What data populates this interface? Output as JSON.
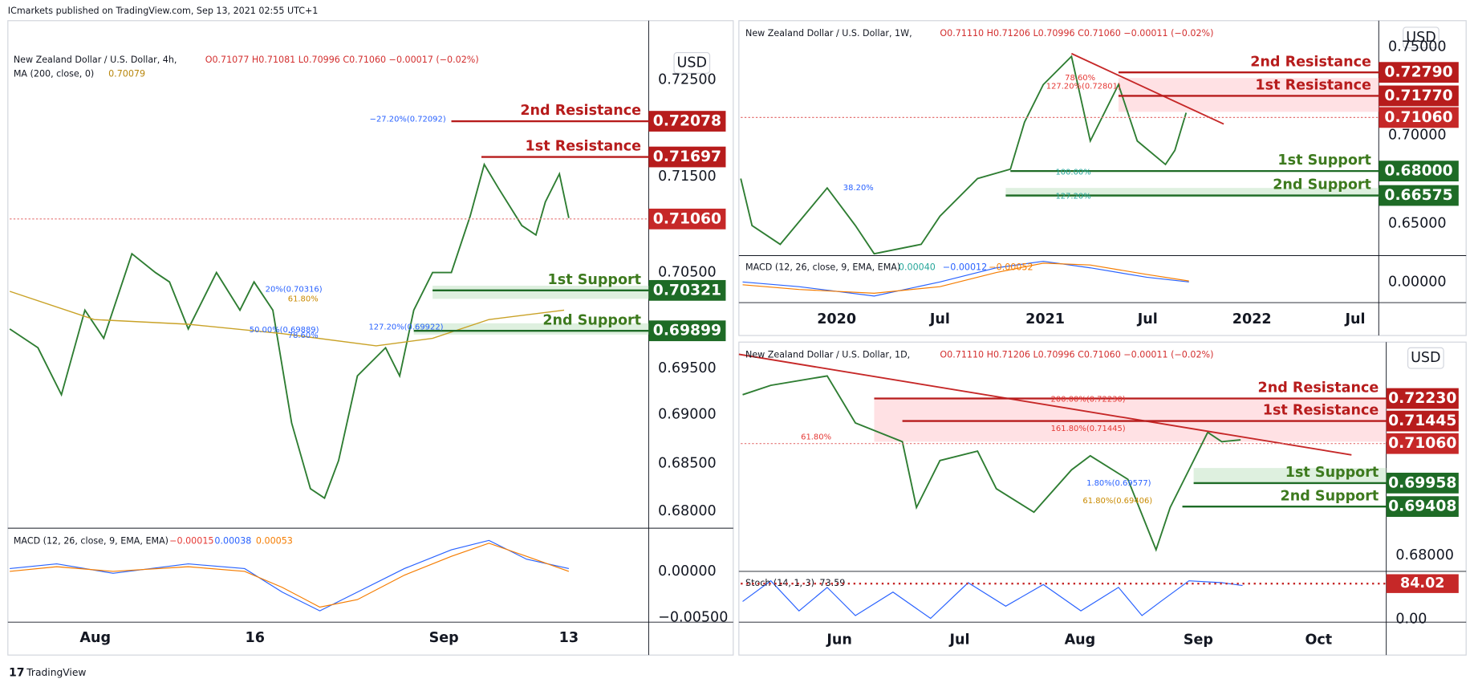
{
  "header": {
    "publisher": "ICmarkets published on TradingView.com, Sep 13, 2021 02:55 UTC+1"
  },
  "footer": {
    "brand": "TradingView"
  },
  "panels": [
    {
      "title": "New Zealand Dollar / U.S. Dollar, 4h,",
      "ohlc": "O0.71077 H0.71081 L0.70996 C0.71060 −0.00017 (−0.02%)",
      "overlay": {
        "title": "MA (200, close, 0)",
        "value": "0.70079"
      },
      "currency": "USD",
      "price_axis": [
        "0.72500",
        "0.71500",
        "0.70500",
        "0.69500",
        "0.69000",
        "0.68500",
        "0.68000"
      ],
      "levels": [
        {
          "name": "2nd Resistance",
          "price": "0.72078"
        },
        {
          "name": "1st Resistance",
          "price": "0.71697"
        },
        {
          "name": "1st Support",
          "price": "0.70321"
        },
        {
          "name": "2nd Support",
          "price": "0.69899"
        }
      ],
      "current_price": "0.71060",
      "fib_labels": [
        "−27.20%(0.72092)",
        "20%(0.70316)",
        "61.80%",
        "50.00%(0.69889)",
        "127.20%(0.69922)",
        "78.60%"
      ],
      "indicator": {
        "title": "MACD (12, 26, close, 9, EMA, EMA)",
        "values": [
          "−0.00015",
          "0.00038",
          "0.00053"
        ],
        "axis": [
          "0.00000",
          "−0.00500"
        ]
      },
      "time_axis": [
        "Aug",
        "16",
        "Sep",
        "13"
      ]
    },
    {
      "title": "New Zealand Dollar / U.S. Dollar, 1W,",
      "ohlc": "O0.71110 H0.71206 L0.70996 C0.71060 −0.00011 (−0.02%)",
      "currency": "USD",
      "price_axis": [
        "0.75000",
        "0.70000",
        "0.65000"
      ],
      "levels": [
        {
          "name": "2nd Resistance",
          "price": "0.72790"
        },
        {
          "name": "1st Resistance",
          "price": "0.71770"
        },
        {
          "name": "1st Support",
          "price": "0.68000"
        },
        {
          "name": "2nd Support",
          "price": "0.66575"
        }
      ],
      "current_price": "0.71060",
      "fib_labels": [
        "78.60%",
        "127.20%(0.72801)",
        "38.20%",
        "100.00%",
        "127.20%"
      ],
      "indicator": {
        "title": "MACD (12, 26, close, 9, EMA, EMA)",
        "values": [
          "0.00040",
          "−0.00012",
          "−0.00052"
        ],
        "axis": [
          "0.00000"
        ]
      },
      "time_axis": [
        "2020",
        "Jul",
        "2021",
        "Jul",
        "2022",
        "Jul"
      ]
    },
    {
      "title": "New Zealand Dollar / U.S. Dollar, 1D,",
      "ohlc": "O0.71110 H0.71206 L0.70996 C0.71060 −0.00011 (−0.02%)",
      "currency": "USD",
      "price_axis": [
        "0.68000"
      ],
      "levels": [
        {
          "name": "2nd Resistance",
          "price": "0.72230"
        },
        {
          "name": "1st Resistance",
          "price": "0.71445"
        },
        {
          "name": "1st Support",
          "price": "0.69958"
        },
        {
          "name": "2nd Support",
          "price": "0.69408"
        }
      ],
      "current_price": "0.71060",
      "fib_labels": [
        "200.00%(0.72230)",
        "161.80%(0.71445)",
        "61.80%",
        "1.80%(0.69577)",
        "61.80%(0.69406)"
      ],
      "indicator": {
        "title": "Stoch (14, 1, 3)",
        "values": [
          "73.59"
        ],
        "axis": [
          "0.00"
        ],
        "marker": "84.02"
      },
      "time_axis": [
        "Jun",
        "Jul",
        "Aug",
        "Sep",
        "Oct"
      ]
    }
  ]
}
